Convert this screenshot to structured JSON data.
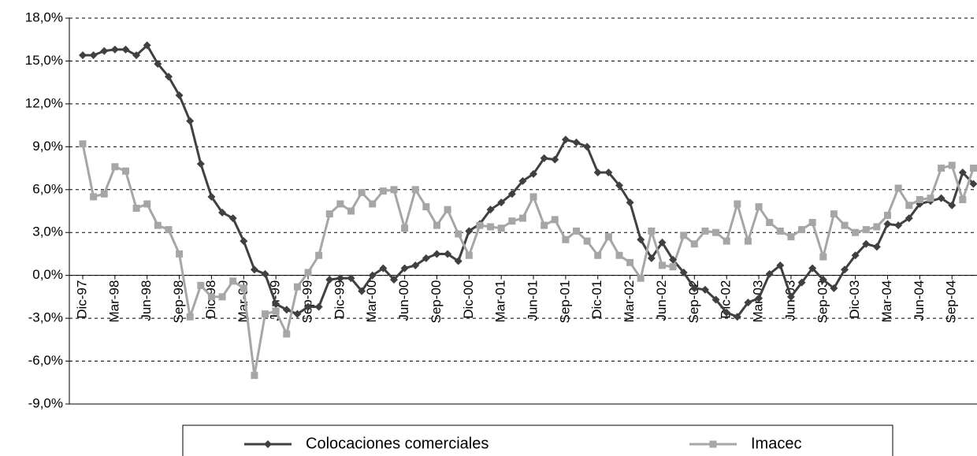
{
  "chart_data": {
    "type": "line",
    "categories": [
      "Dic-97",
      null,
      null,
      "Mar-98",
      null,
      null,
      "Jun-98",
      null,
      null,
      "Sep-98",
      null,
      null,
      "Dic-98",
      null,
      null,
      "Mar-99",
      null,
      null,
      "Jun-99",
      null,
      null,
      "Sep-99",
      null,
      null,
      "Dic-99",
      null,
      null,
      "Mar-00",
      null,
      null,
      "Jun-00",
      null,
      null,
      "Sep-00",
      null,
      null,
      "Dic-00",
      null,
      null,
      "Mar-01",
      null,
      null,
      "Jun-01",
      null,
      null,
      "Sep-01",
      null,
      null,
      "Dic-01",
      null,
      null,
      "Mar-02",
      null,
      null,
      "Jun-02",
      null,
      null,
      "Sep-02",
      null,
      null,
      "Dic-02",
      null,
      null,
      "Mar-03",
      null,
      null,
      "Jun-03",
      null,
      null,
      "Sep-03",
      null,
      null,
      "Dic-03",
      null,
      null,
      "Mar-04",
      null,
      null,
      "Jun-04",
      null,
      null,
      "Sep-04",
      null,
      null
    ],
    "series": [
      {
        "name": "Colocaciones comerciales",
        "color": "#404040",
        "marker": "diamond",
        "values": [
          15.4,
          15.4,
          15.7,
          15.8,
          15.8,
          15.4,
          16.1,
          14.8,
          13.9,
          12.6,
          10.8,
          7.8,
          5.5,
          4.4,
          4.0,
          2.4,
          0.4,
          0.1,
          -2.0,
          -2.4,
          -2.7,
          -2.2,
          -2.2,
          -0.3,
          -0.2,
          -0.2,
          -1.1,
          0.0,
          0.5,
          -0.3,
          0.5,
          0.7,
          1.2,
          1.5,
          1.5,
          1.0,
          3.1,
          3.6,
          4.6,
          5.1,
          5.7,
          6.6,
          7.1,
          8.2,
          8.1,
          9.5,
          9.3,
          9.0,
          7.2,
          7.2,
          6.3,
          5.1,
          2.5,
          1.2,
          2.3,
          1.1,
          0.2,
          -0.9,
          -1.0,
          -1.7,
          -2.6,
          -2.9,
          -1.9,
          -1.6,
          0.1,
          0.7,
          -1.5,
          -0.5,
          0.5,
          -0.3,
          -0.9,
          0.4,
          1.4,
          2.2,
          2.0,
          3.6,
          3.5,
          4.0,
          5.0,
          5.2,
          5.4,
          4.9,
          7.2,
          6.4
        ]
      },
      {
        "name": "Imacec",
        "color": "#a6a6a6",
        "marker": "square",
        "values": [
          9.2,
          5.5,
          5.7,
          7.6,
          7.3,
          4.7,
          5.0,
          3.5,
          3.2,
          1.5,
          -2.9,
          -0.7,
          -1.5,
          -1.5,
          -0.4,
          -0.9,
          -7.0,
          -2.7,
          -2.5,
          -4.1,
          -0.8,
          0.2,
          1.4,
          4.3,
          5.0,
          4.5,
          5.8,
          5.0,
          5.9,
          6.0,
          3.3,
          6.0,
          4.8,
          3.5,
          4.6,
          2.9,
          1.4,
          3.5,
          3.4,
          3.3,
          3.8,
          4.0,
          5.5,
          3.5,
          3.9,
          2.5,
          3.1,
          2.4,
          1.4,
          2.7,
          1.4,
          0.9,
          -0.2,
          3.1,
          0.7,
          0.6,
          2.8,
          2.2,
          3.1,
          3.0,
          2.4,
          5.0,
          2.4,
          4.8,
          3.7,
          3.1,
          2.7,
          3.2,
          3.7,
          1.3,
          4.3,
          3.5,
          3.0,
          3.2,
          3.4,
          4.2,
          6.1,
          4.9,
          5.3,
          5.4,
          7.5,
          7.7,
          5.3,
          7.5
        ]
      }
    ],
    "ylim": [
      -9,
      18
    ],
    "yticks": [
      {
        "value": -9,
        "label": "-9,0%"
      },
      {
        "value": -6,
        "label": "-6,0%"
      },
      {
        "value": -3,
        "label": "-3,0%"
      },
      {
        "value": 0,
        "label": "0,0%"
      },
      {
        "value": 3,
        "label": "3,0%"
      },
      {
        "value": 6,
        "label": "6,0%"
      },
      {
        "value": 9,
        "label": "9,0%"
      },
      {
        "value": 12,
        "label": "12,0%"
      },
      {
        "value": 15,
        "label": "15,0%"
      },
      {
        "value": 18,
        "label": "18,0%"
      }
    ],
    "grid": true,
    "legend": "bottom"
  }
}
